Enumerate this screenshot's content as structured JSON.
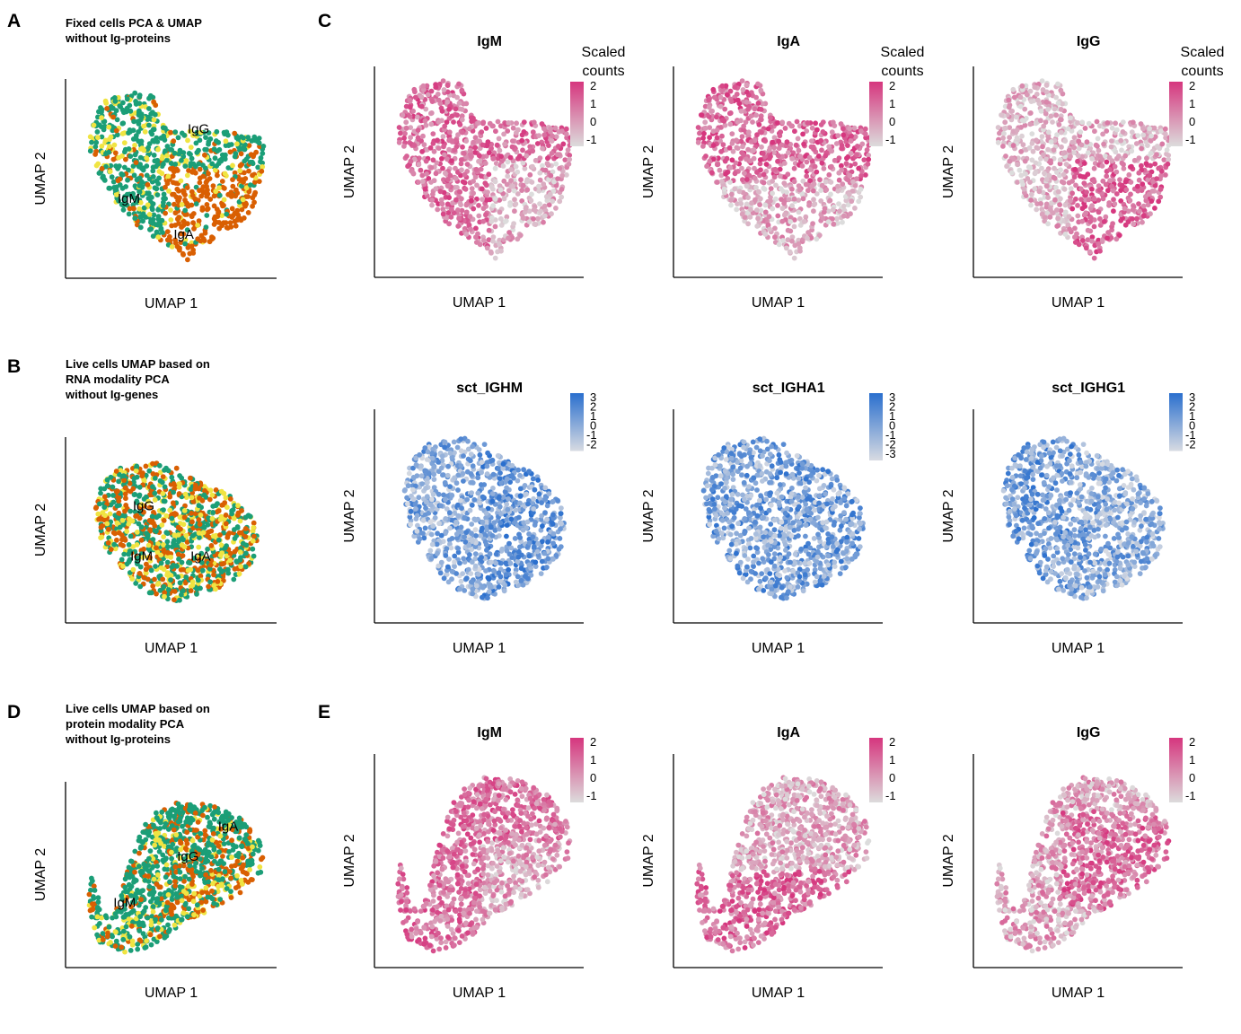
{
  "colors": {
    "IgG": "#d95f02",
    "IgM": "#1b9e77",
    "IgA": "#f0e442",
    "pink_high": "#d6367e",
    "pink_low": "#dcdcdc",
    "blue_high": "#2a6fce",
    "blue_low": "#d8dbe2"
  },
  "chart_data": [
    {
      "id": "A",
      "panel_label": "A",
      "type": "scatter",
      "title": [
        "Fixed cells PCA & UMAP",
        "without Ig-proteins"
      ],
      "xlabel": "UMAP 1",
      "ylabel": "UMAP 2",
      "color_by": "cluster",
      "cluster_labels": [
        {
          "text": "IgG",
          "x": 0.63,
          "y": 0.75
        },
        {
          "text": "IgM",
          "x": 0.3,
          "y": 0.4
        },
        {
          "text": "IgA",
          "x": 0.56,
          "y": 0.22
        }
      ]
    },
    {
      "id": "C1",
      "panel_label": "C",
      "type": "scatter",
      "title": "IgM",
      "xlabel": "UMAP 1",
      "ylabel": "UMAP 2",
      "color_by": "continuous",
      "legend": {
        "title": [
          "Scaled",
          "counts"
        ],
        "ticks": [
          "2",
          "1",
          "0",
          "-1"
        ],
        "palette": "pink"
      }
    },
    {
      "id": "C2",
      "type": "scatter",
      "title": "IgA",
      "xlabel": "UMAP 1",
      "ylabel": "UMAP 2",
      "color_by": "continuous",
      "legend": {
        "title": [
          "Scaled",
          "counts"
        ],
        "ticks": [
          "2",
          "1",
          "0",
          "-1"
        ],
        "palette": "pink"
      }
    },
    {
      "id": "C3",
      "type": "scatter",
      "title": "IgG",
      "xlabel": "UMAP 1",
      "ylabel": "UMAP 2",
      "color_by": "continuous",
      "legend": {
        "title": [
          "Scaled",
          "counts"
        ],
        "ticks": [
          "2",
          "1",
          "0",
          "-1"
        ],
        "palette": "pink"
      }
    },
    {
      "id": "B",
      "panel_label": "B",
      "type": "scatter",
      "title": [
        "Live cells UMAP based on",
        "RNA modality PCA",
        "without Ig-genes"
      ],
      "xlabel": "UMAP 1",
      "ylabel": "UMAP 2",
      "color_by": "cluster",
      "cluster_labels": [
        {
          "text": "IgG",
          "x": 0.37,
          "y": 0.63
        },
        {
          "text": "IgM",
          "x": 0.36,
          "y": 0.36
        },
        {
          "text": "IgA",
          "x": 0.64,
          "y": 0.36
        }
      ]
    },
    {
      "id": "R1",
      "type": "scatter",
      "title": "sct_IGHM",
      "xlabel": "UMAP 1",
      "ylabel": "UMAP 2",
      "color_by": "continuous",
      "legend": {
        "title": [],
        "ticks": [
          "3",
          "2",
          "1",
          "0",
          "-1",
          "-2"
        ],
        "palette": "blue"
      }
    },
    {
      "id": "R2",
      "type": "scatter",
      "title": "sct_IGHA1",
      "xlabel": "UMAP 1",
      "ylabel": "UMAP 2",
      "color_by": "continuous",
      "legend": {
        "title": [],
        "ticks": [
          "3",
          "2",
          "1",
          "0",
          "-1",
          "-2",
          "-3"
        ],
        "palette": "blue"
      }
    },
    {
      "id": "R3",
      "type": "scatter",
      "title": "sct_IGHG1",
      "xlabel": "UMAP 1",
      "ylabel": "UMAP 2",
      "color_by": "continuous",
      "legend": {
        "title": [],
        "ticks": [
          "3",
          "2",
          "1",
          "0",
          "-1",
          "-2"
        ],
        "palette": "blue"
      }
    },
    {
      "id": "D",
      "panel_label": "D",
      "type": "scatter",
      "title": [
        "Live cells UMAP based on",
        "protein modality PCA",
        "without Ig-proteins"
      ],
      "xlabel": "UMAP 1",
      "ylabel": "UMAP 2",
      "color_by": "cluster",
      "cluster_labels": [
        {
          "text": "IgA",
          "x": 0.77,
          "y": 0.76
        },
        {
          "text": "IgG",
          "x": 0.58,
          "y": 0.6
        },
        {
          "text": "IgM",
          "x": 0.28,
          "y": 0.35
        }
      ]
    },
    {
      "id": "E1",
      "panel_label": "E",
      "type": "scatter",
      "title": "IgM",
      "xlabel": "UMAP 1",
      "ylabel": "UMAP 2",
      "color_by": "continuous",
      "legend": {
        "title": [],
        "ticks": [
          "2",
          "1",
          "0",
          "-1"
        ],
        "palette": "pink"
      }
    },
    {
      "id": "E2",
      "type": "scatter",
      "title": "IgA",
      "xlabel": "UMAP 1",
      "ylabel": "UMAP 2",
      "color_by": "continuous",
      "legend": {
        "title": [],
        "ticks": [
          "2",
          "1",
          "0",
          "-1"
        ],
        "palette": "pink"
      }
    },
    {
      "id": "E3",
      "type": "scatter",
      "title": "IgG",
      "xlabel": "UMAP 1",
      "ylabel": "UMAP 2",
      "color_by": "continuous",
      "legend": {
        "title": [],
        "ticks": [
          "2",
          "1",
          "0",
          "-1"
        ],
        "palette": "pink"
      }
    }
  ]
}
